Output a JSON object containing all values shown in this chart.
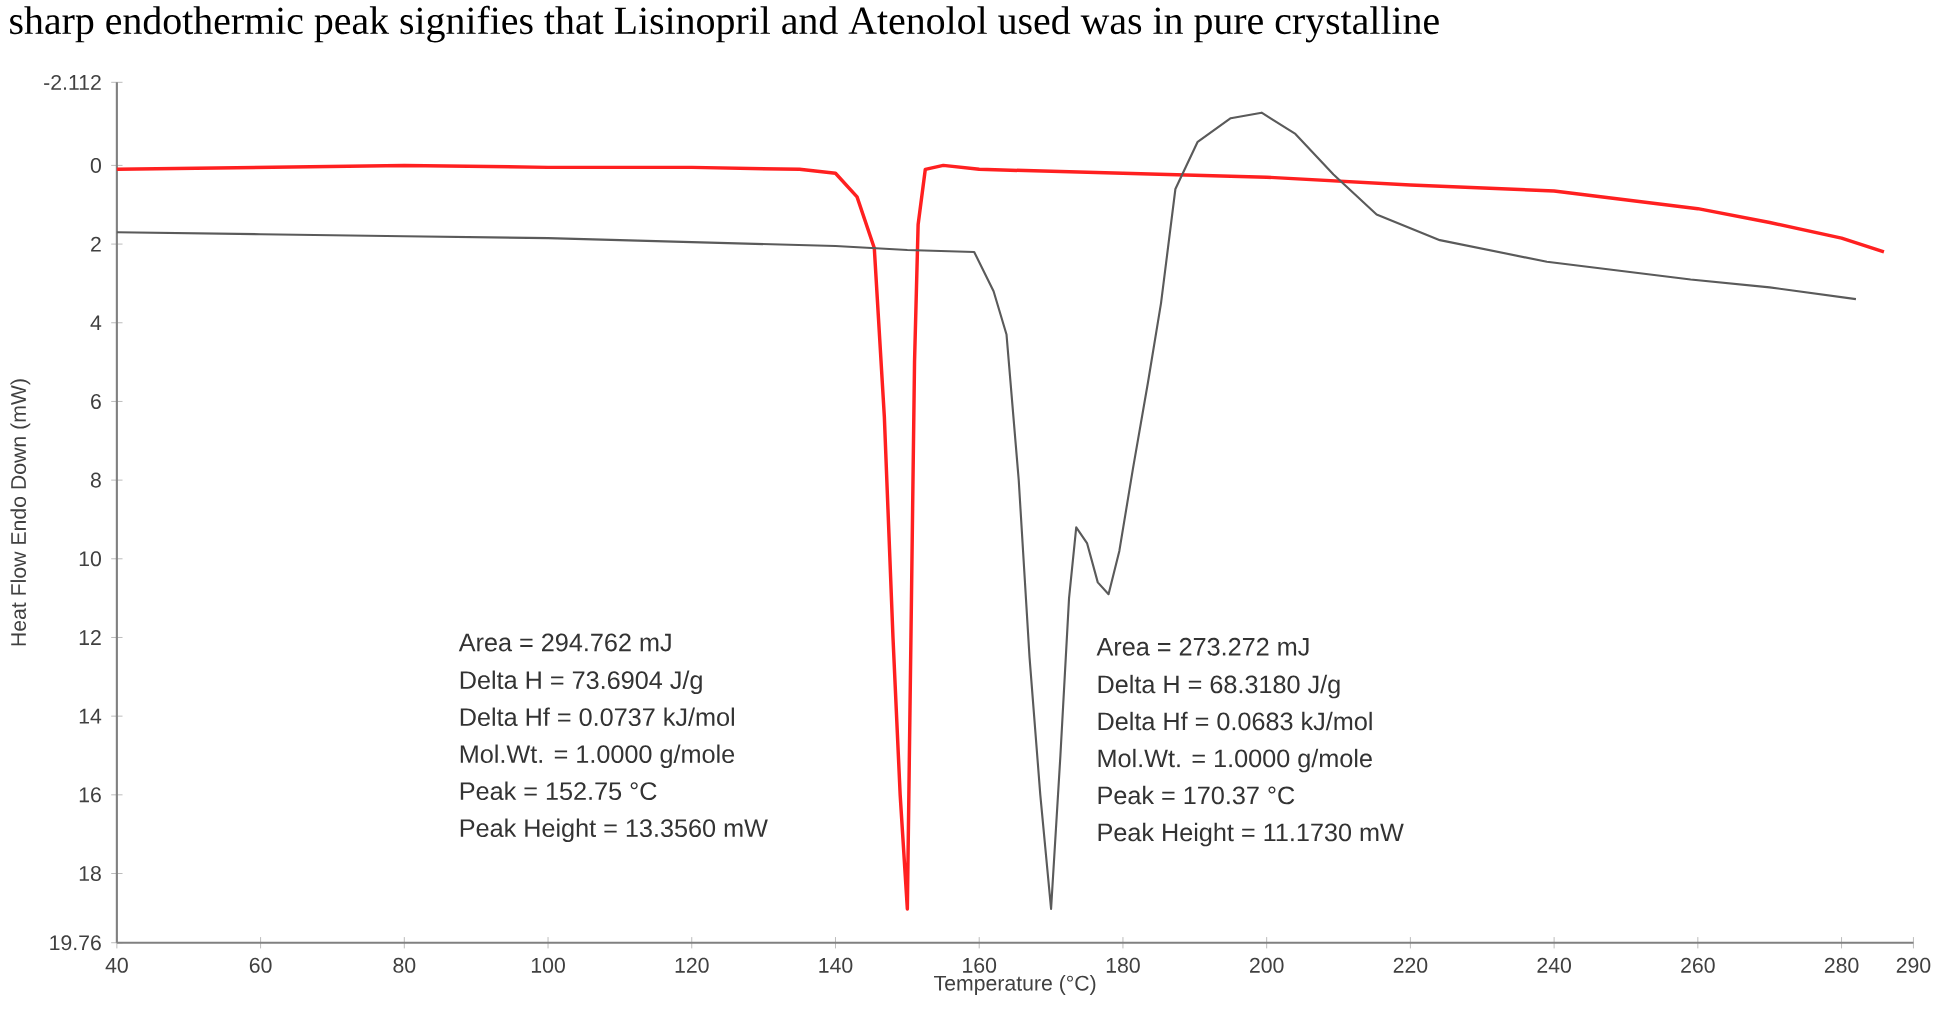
{
  "chart_data": {
    "type": "line",
    "title": "sharp endothermic peak signifies that Lisinopril and Atenolol used was in pure crystalline",
    "xlabel": "Temperature (°C)",
    "ylabel": "Heat Flow Endo Down (mW)",
    "xlim": [
      40,
      290
    ],
    "xticks": [
      40,
      60,
      80,
      100,
      120,
      140,
      160,
      180,
      200,
      220,
      240,
      260,
      280,
      290
    ],
    "ylim": [
      19.76,
      -2.112
    ],
    "yticks": [
      -2.112,
      0,
      2,
      4,
      6,
      8,
      10,
      12,
      14,
      16,
      18,
      19.76
    ],
    "marker": "none",
    "line_style": "solid",
    "series": [
      {
        "color": "#ff2020",
        "x": [
          40,
          60,
          80,
          100,
          120,
          135,
          140,
          143,
          145.4,
          146.8,
          148,
          149,
          150,
          150.5,
          151,
          151.5,
          152.5,
          155,
          160,
          180,
          200,
          220,
          240,
          260,
          270,
          280,
          285.9
        ],
        "values": [
          0.1,
          0.05,
          0,
          0.05,
          0.05,
          0.1,
          0.2,
          0.8,
          2.1,
          6.4,
          12,
          16,
          18.9,
          12,
          5,
          1.5,
          0.1,
          0,
          0.1,
          0.2,
          0.3,
          0.5,
          0.65,
          1.1,
          1.45,
          1.85,
          2.2
        ]
      },
      {
        "color": "#5a5a5a",
        "x": [
          40,
          60,
          80,
          100,
          120,
          140,
          150,
          159.3,
          162,
          163.8,
          165.5,
          167,
          168.5,
          170,
          171.3,
          172.5,
          173.5,
          175,
          176.5,
          178,
          179.5,
          181.4,
          183.5,
          185.3,
          187.3,
          190.4,
          195,
          199.3,
          204,
          209.3,
          215.3,
          224.1,
          239,
          259,
          270,
          282
        ],
        "values": [
          1.7,
          1.75,
          1.8,
          1.85,
          1.95,
          2.05,
          2.15,
          2.2,
          3.2,
          4.3,
          8,
          12.5,
          16,
          18.9,
          15,
          11,
          9.2,
          9.6,
          10.6,
          10.9,
          9.8,
          7.7,
          5.5,
          3.5,
          0.6,
          -0.6,
          -1.2,
          -1.34,
          -0.8,
          0.23,
          1.25,
          1.9,
          2.45,
          2.9,
          3.1,
          3.4
        ]
      }
    ],
    "annotations": [
      "Area = 294.762 mJ",
      "Delta H = 73.6904 J/g",
      "Delta Hf = 0.0737 kJ/mol",
      "Mol.Wt. = 1.0000 g/mole",
      "Peak = 152.75 °C",
      "Peak Height = 13.3560 mW",
      "Area = 273.272 mJ",
      "Delta H = 68.3180 J/g",
      "Delta Hf = 0.0683 kJ/mol",
      "Mol.Wt. = 1.0000 g/mole",
      "Peak = 170.37 °C",
      "Peak Height = 11.1730 mW"
    ]
  }
}
